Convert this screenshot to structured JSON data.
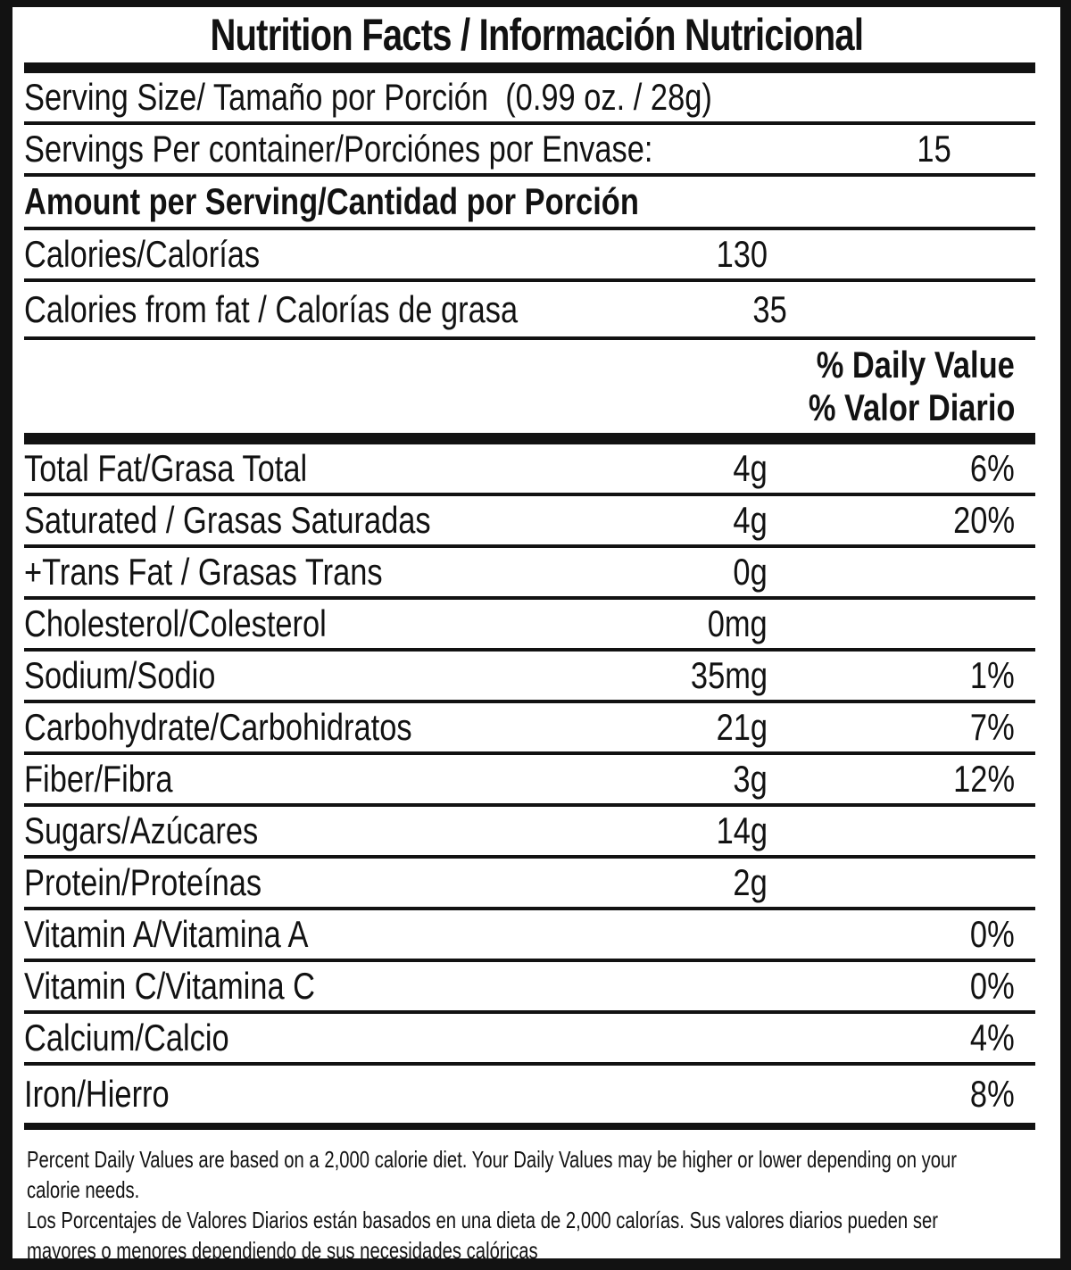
{
  "label": {
    "title": "Nutrition Facts / Información Nutricional",
    "serving_size": {
      "label": "Serving Size/ Tamaño por Porción  (0.99 oz. / 28g)"
    },
    "servings_per_container": {
      "label": "Servings Per container/Porciónes por Envase:",
      "value": "15"
    },
    "amount_per_serving": {
      "label": "Amount per Serving/Cantidad por Porción"
    },
    "calories": {
      "label": "Calories/Calorías",
      "value": "130"
    },
    "calories_from_fat": {
      "label": "Calories from fat / Calorías de grasa",
      "value": "35"
    },
    "daily_value_header": {
      "line1": "% Daily Value",
      "line2": "% Valor Diario"
    },
    "nutrients": [
      {
        "label": "Total Fat/Grasa Total",
        "amount": "4g",
        "dv": "6%"
      },
      {
        "label": "Saturated / Grasas Saturadas",
        "amount": "4g",
        "dv": "20%"
      },
      {
        "label": "+Trans Fat / Grasas Trans",
        "amount": "0g",
        "dv": ""
      },
      {
        "label": "Cholesterol/Colesterol",
        "amount": "0mg",
        "dv": ""
      },
      {
        "label": "Sodium/Sodio",
        "amount": "35mg",
        "dv": "1%"
      },
      {
        "label": "Carbohydrate/Carbohidratos",
        "amount": "21g",
        "dv": "7%"
      },
      {
        "label": "Fiber/Fibra",
        "amount": "3g",
        "dv": "12%"
      },
      {
        "label": "Sugars/Azúcares",
        "amount": "14g",
        "dv": ""
      },
      {
        "label": "Protein/Proteínas",
        "amount": "2g",
        "dv": ""
      },
      {
        "label": "Vitamin A/Vitamina A",
        "amount": "",
        "dv": "0%"
      },
      {
        "label": "Vitamin C/Vitamina C",
        "amount": "",
        "dv": "0%"
      },
      {
        "label": "Calcium/Calcio",
        "amount": "",
        "dv": "4%"
      },
      {
        "label": "Iron/Hierro",
        "amount": "",
        "dv": "8%"
      }
    ],
    "footnote_lines": [
      "Percent Daily Values are based on a 2,000 calorie diet. Your Daily Values may be higher or lower depending on your",
      "calorie needs.",
      "Los Porcentajes de Valores Diarios están basados en una dieta de 2,000 calorías. Sus valores diarios pueden ser",
      "mayores o menores dependiendo de sus necesidades calóricas"
    ],
    "colors": {
      "ink": "#121212",
      "background": "#ffffff"
    }
  }
}
